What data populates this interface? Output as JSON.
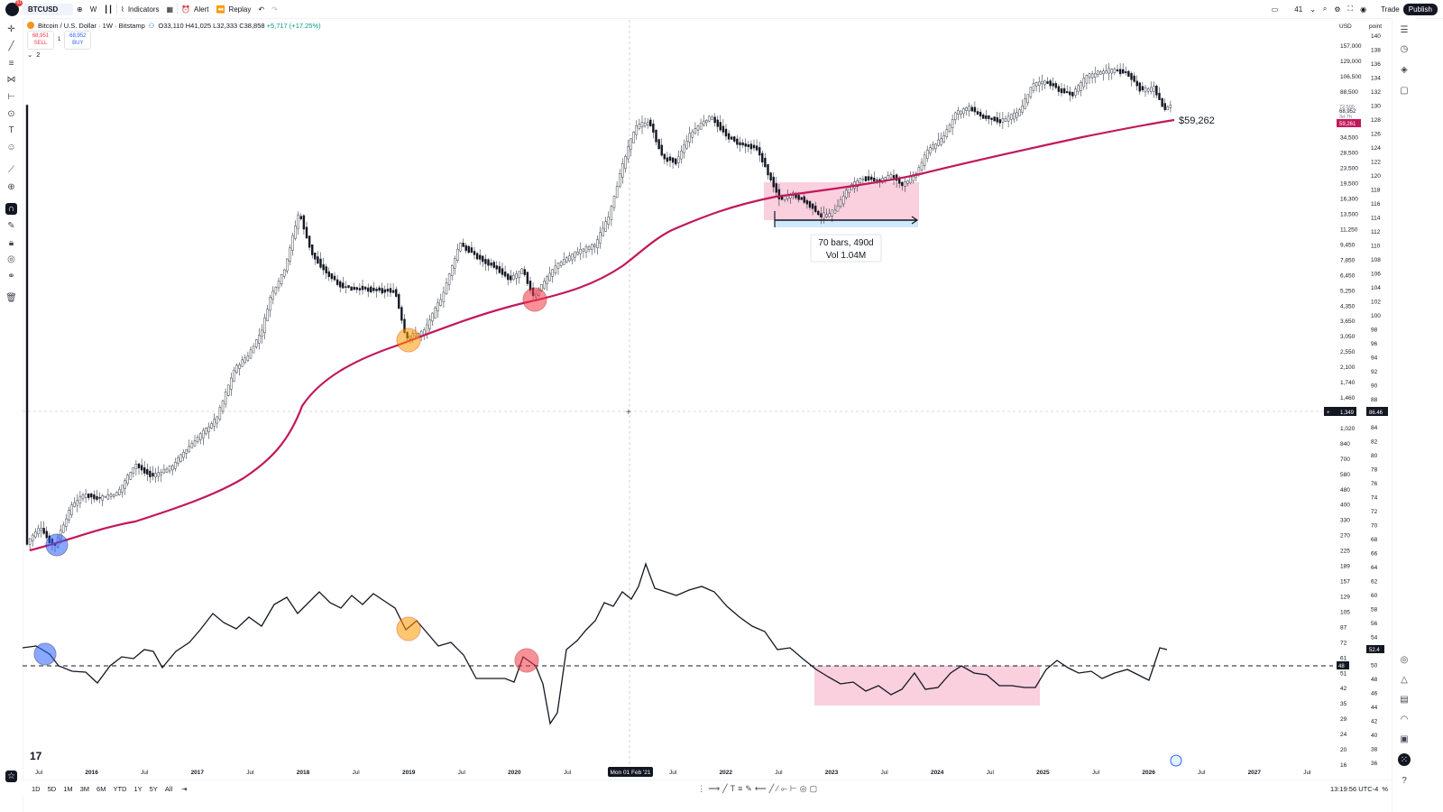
{
  "topbar": {
    "notification_count": "61",
    "symbol": "BTCUSD",
    "interval": "W",
    "indicators_label": "Indicators",
    "alert_label": "Alert",
    "replay_label": "Replay",
    "zoom_value": "41",
    "trade_label": "Trade",
    "publish_label": "Publish"
  },
  "legend": {
    "title": "Bitcoin / U.S. Dollar · 1W · Bitstamp",
    "ohlc": {
      "o": "O33,110",
      "h": "H41,025",
      "l": "L32,333",
      "c": "C38,858",
      "chg": "+5,717 (+17.25%)"
    },
    "sell_price": "68,951",
    "sell_label": "SELL",
    "buy_price": "68,952",
    "buy_label": "BUY",
    "spread": "1",
    "indicator_count": "2"
  },
  "price_axis": {
    "currency": "USD",
    "ticks": [
      "157,000",
      "129,000",
      "106,500",
      "88,500",
      "50,500",
      "41,500",
      "34,500",
      "28,500",
      "23,500",
      "19,500",
      "16,300",
      "13,500",
      "11,250",
      "9,450",
      "7,850",
      "6,450",
      "5,250",
      "4,350",
      "3,650",
      "3,050",
      "2,550",
      "2,100",
      "1,740",
      "1,460",
      "1,220",
      "1,020",
      "840",
      "700",
      "580",
      "480",
      "400",
      "330",
      "270",
      "225",
      "189",
      "157",
      "129",
      "105",
      "87",
      "72",
      "61",
      "51",
      "42",
      "35",
      "29",
      "24",
      "20",
      "16"
    ],
    "current_price": "68,952",
    "countdown": "3d 7h",
    "pre_price": "72,500",
    "ma_price": "59,261",
    "crosshair_price": "1,349"
  },
  "point_axis": {
    "unit": "point",
    "ticks": [
      "140",
      "138",
      "136",
      "134",
      "132",
      "130",
      "128",
      "126",
      "124",
      "122",
      "120",
      "118",
      "116",
      "114",
      "112",
      "110",
      "108",
      "106",
      "104",
      "102",
      "100",
      "98",
      "96",
      "94",
      "92",
      "90",
      "88",
      "86",
      "84",
      "82",
      "80",
      "78",
      "76",
      "74",
      "72",
      "70",
      "68",
      "66",
      "64",
      "62",
      "60",
      "58",
      "56",
      "54",
      "52",
      "50",
      "48",
      "46",
      "44",
      "42",
      "40",
      "38",
      "36"
    ],
    "crosshair_point": "86.46",
    "indicator_value": "52.4",
    "indicator_ref": "48"
  },
  "time_axis": {
    "labels": [
      "Jul",
      "2016",
      "Jul",
      "2017",
      "Jul",
      "2018",
      "Jul",
      "2019",
      "Jul",
      "2020",
      "Jul",
      "2021",
      "Jul",
      "2022",
      "Jul",
      "2023",
      "Jul",
      "2024",
      "Jul",
      "2025",
      "Jul",
      "2026",
      "Jul",
      "2027",
      "Jul"
    ],
    "crosshair_date": "Mon 01 Feb '21"
  },
  "annotations": {
    "ma_label": "$59,262",
    "range_bars": "70 bars, 490d",
    "range_vol": "Vol 1.04M"
  },
  "bottombar": {
    "ranges": [
      "1D",
      "5D",
      "1M",
      "3M",
      "6M",
      "YTD",
      "1Y",
      "5Y",
      "All"
    ],
    "clock": "13:19:56 UTC-4"
  },
  "colors": {
    "ma_line": "#c2185b",
    "blue_marker": "#2962ff",
    "orange_marker": "#ff9800",
    "red_marker": "#f23645",
    "range_fill": "#f8bbd0"
  }
}
